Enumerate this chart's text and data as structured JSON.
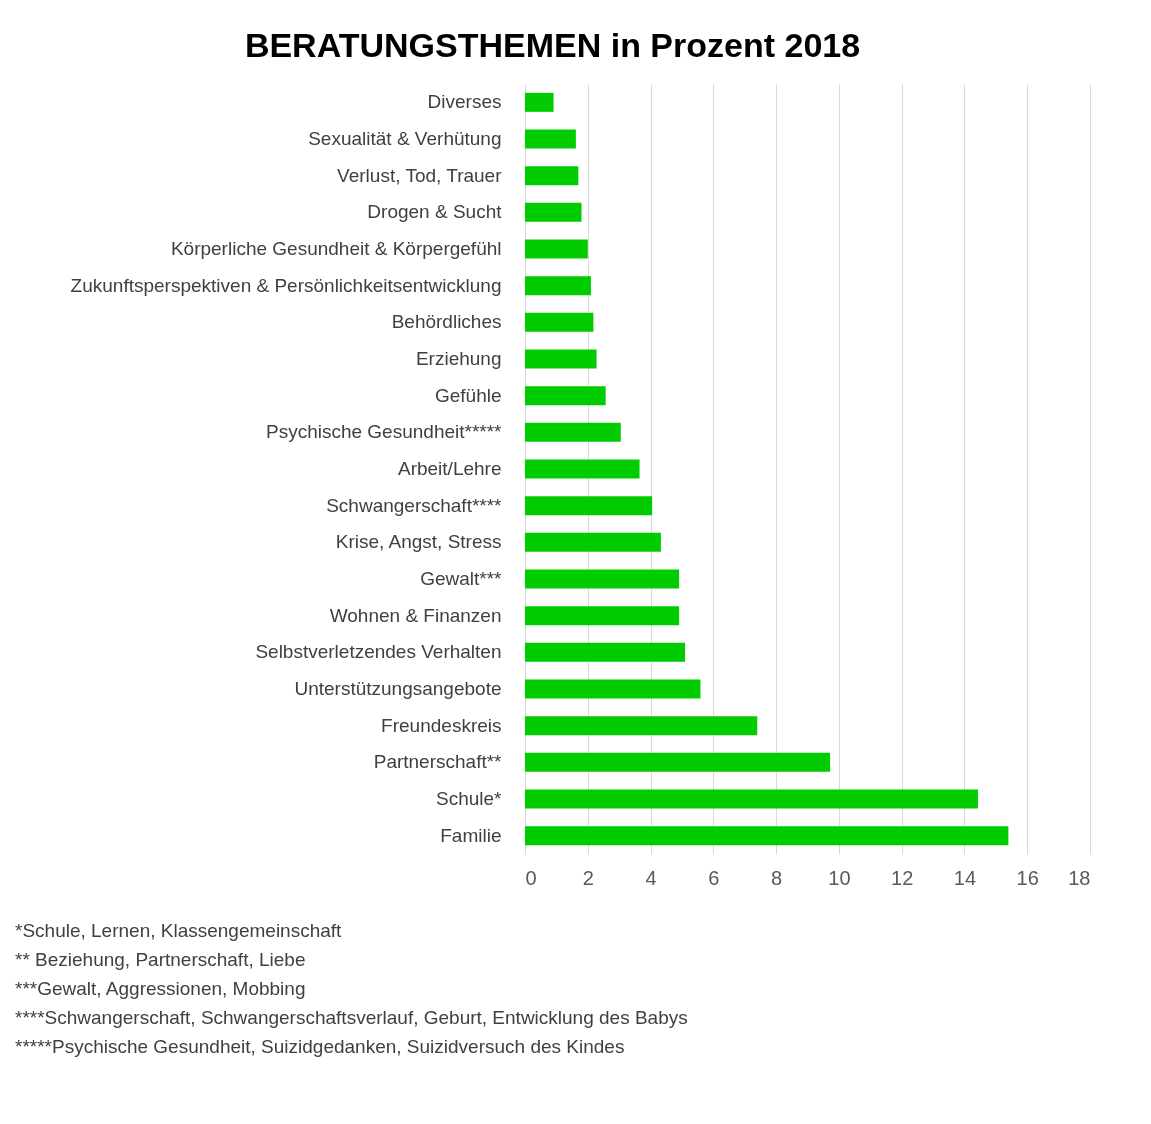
{
  "chart_data": {
    "type": "bar",
    "orientation": "horizontal",
    "title": "BERATUNGSTHEMEN in Prozent 2018",
    "categories": [
      "Diverses",
      "Sexualität & Verhütung",
      "Verlust, Tod, Trauer",
      "Drogen & Sucht",
      "Körperliche Gesundheit & Körpergefühl",
      "Zukunftsperspektiven & Persönlichkeitsentwicklung",
      "Behördliches",
      "Erziehung",
      "Gefühle",
      "Psychische Gesundheit*****",
      "Arbeit/Lehre",
      "Schwangerschaft****",
      "Krise, Angst, Stress",
      "Gewalt***",
      "Wohnen & Finanzen",
      "Selbstverletzendes Verhalten",
      "Unterstützungsangebote",
      "Freundeskreis",
      "Partnerschaft**",
      "Schule*",
      "Familie"
    ],
    "values": [
      0.91,
      1.62,
      1.7,
      1.8,
      2.0,
      2.1,
      2.18,
      2.28,
      2.57,
      3.05,
      3.65,
      4.05,
      4.33,
      4.91,
      4.91,
      5.1,
      5.59,
      7.4,
      9.72,
      14.43,
      15.4
    ],
    "color": "#00cc00",
    "xlim": [
      0,
      18
    ],
    "xticks": [
      0,
      2,
      4,
      6,
      8,
      10,
      12,
      14,
      16,
      18
    ],
    "grid": "x",
    "annotations": [
      "*Schule, Lernen, Klassengemeinschaft",
      "** Beziehung, Partnerschaft, Liebe",
      "***Gewalt, Aggressionen, Mobbing",
      "****Schwangerschaft, Schwangerschaftsverlauf, Geburt, Entwicklung des Babys",
      "*****Psychische Gesundheit, Suizidgedanken, Suizidversuch des Kindes"
    ]
  }
}
